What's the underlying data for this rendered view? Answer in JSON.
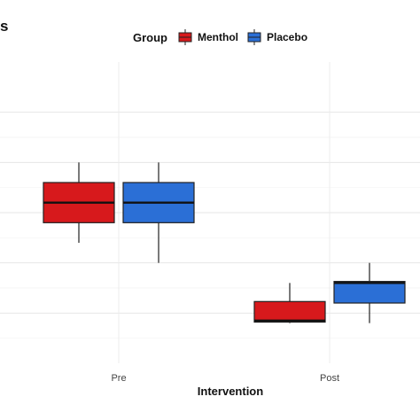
{
  "header": {
    "title_fragment": "s"
  },
  "legend": {
    "title": "Group",
    "items": [
      {
        "label": "Menthol",
        "color": "#d7191c"
      },
      {
        "label": "Placebo",
        "color": "#2b6fd6"
      }
    ]
  },
  "chart_data": {
    "type": "boxplot",
    "xlabel": "Intervention",
    "ylabel": "",
    "categories": [
      "Pre",
      "Post"
    ],
    "grid": true,
    "legend_position": "top",
    "ylim": [
      0,
      6
    ],
    "series": [
      {
        "name": "Menthol",
        "color": "#d7191c",
        "boxes": [
          {
            "category": "Pre",
            "min": 2.4,
            "q1": 2.8,
            "median": 3.2,
            "q3": 3.6,
            "max": 4.0
          },
          {
            "category": "Post",
            "min": 0.8,
            "q1": 0.82,
            "median": 0.85,
            "q3": 1.23,
            "max": 1.6
          }
        ]
      },
      {
        "name": "Placebo",
        "color": "#2b6fd6",
        "boxes": [
          {
            "category": "Pre",
            "min": 2.0,
            "q1": 2.8,
            "median": 3.2,
            "q3": 3.6,
            "max": 4.0
          },
          {
            "category": "Post",
            "min": 0.8,
            "q1": 1.2,
            "median": 1.6,
            "q3": 1.63,
            "max": 2.0
          }
        ]
      }
    ]
  }
}
